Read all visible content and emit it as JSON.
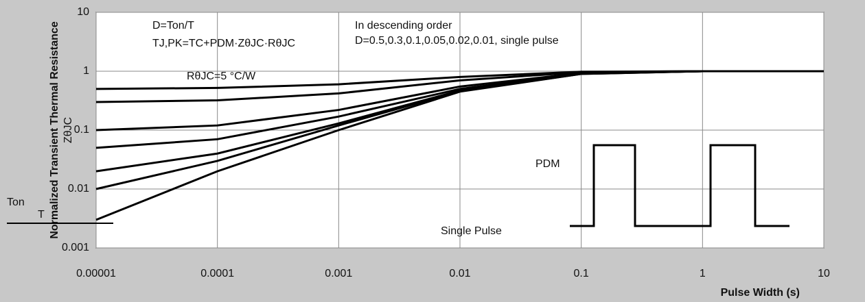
{
  "chart_data": {
    "type": "line",
    "x_label": "Pulse Width (s)",
    "y_label": "Normalized Transient Thermal Resistance",
    "y_symbol": "ZθJC",
    "annotations": [
      "D=Ton/T",
      "TJ,PK=TC+PDM·ZθJC·RθJC",
      "RθJC=5 °C/W",
      "In descending order",
      "D=0.5,0.3,0.1,0.05,0.02,0.01, single pulse",
      "Single Pulse",
      "PDM",
      "Ton",
      "T"
    ],
    "x": [
      1e-05,
      0.0001,
      0.001,
      0.01,
      0.1,
      1,
      10
    ],
    "series": [
      {
        "color": "#000000",
        "values": [
          0.5,
          0.52,
          0.6,
          0.8,
          0.98,
          1,
          1
        ]
      },
      {
        "color": "#000000",
        "values": [
          0.3,
          0.32,
          0.42,
          0.7,
          0.96,
          1,
          1
        ]
      },
      {
        "color": "#000000",
        "values": [
          0.1,
          0.12,
          0.22,
          0.55,
          0.93,
          1,
          1
        ]
      },
      {
        "color": "#000000",
        "values": [
          0.05,
          0.07,
          0.17,
          0.5,
          0.92,
          1,
          1
        ]
      },
      {
        "color": "#000000",
        "values": [
          0.02,
          0.04,
          0.13,
          0.47,
          0.91,
          1,
          1
        ]
      },
      {
        "color": "#000000",
        "values": [
          0.01,
          0.03,
          0.12,
          0.46,
          0.9,
          1,
          1
        ]
      },
      {
        "color": "#000000",
        "values": [
          0.003,
          0.02,
          0.1,
          0.45,
          0.9,
          1,
          1
        ]
      }
    ],
    "log_x": true,
    "log_y": true,
    "grid": true,
    "xlim": [
      1e-05,
      10
    ],
    "xticks": [
      1e-05,
      0.0001,
      0.001,
      0.01,
      0.1,
      1,
      10
    ],
    "ylim": [
      0.001,
      10
    ],
    "yticks": [
      0.001,
      0.01,
      0.1,
      1,
      10
    ]
  }
}
